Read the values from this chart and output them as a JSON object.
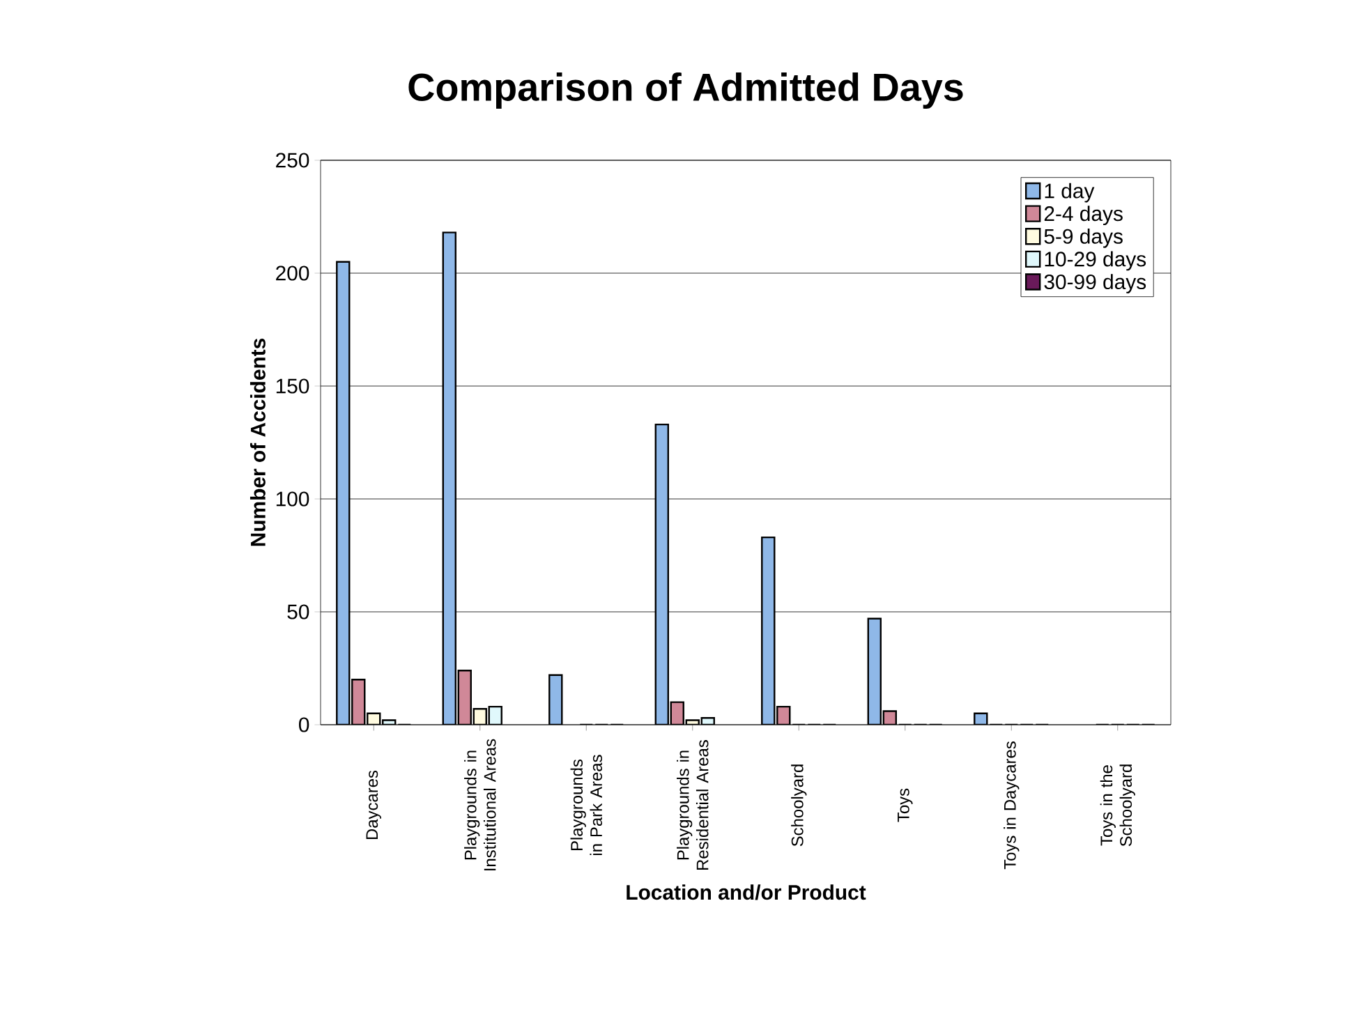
{
  "chart_data": {
    "type": "bar",
    "title": "Comparison of Admitted Days",
    "xlabel": "Location and/or Product",
    "ylabel": "Number of Accidents",
    "categories": [
      "Daycares",
      "Playgrounds in Institutional Areas",
      "Playgrounds in Park Areas",
      "Playgrounds in Residential Areas",
      "Schoolyard",
      "Toys",
      "Toys in Daycares",
      "Toys in the Schoolyard"
    ],
    "series": [
      {
        "name": "1 day",
        "color": "#8fb8e8",
        "values": [
          205,
          218,
          22,
          133,
          83,
          47,
          5,
          null
        ]
      },
      {
        "name": "2-4 days",
        "color": "#d08898",
        "values": [
          20,
          24,
          null,
          10,
          8,
          6,
          0,
          0
        ]
      },
      {
        "name": "5-9 days",
        "color": "#fffbe0",
        "values": [
          5,
          7,
          0,
          2,
          0,
          0,
          0,
          0
        ]
      },
      {
        "name": "10-29 days",
        "color": "#e0f8fc",
        "values": [
          2,
          8,
          0,
          3,
          0,
          0,
          0,
          0
        ]
      },
      {
        "name": "30-99 days",
        "color": "#6a1a5a",
        "values": [
          0,
          null,
          0,
          null,
          0,
          0,
          0,
          0
        ]
      }
    ],
    "ylim": [
      0,
      250
    ],
    "yticks": [
      0,
      50,
      100,
      150,
      200,
      250
    ],
    "grid": "y",
    "legend": "top right"
  }
}
